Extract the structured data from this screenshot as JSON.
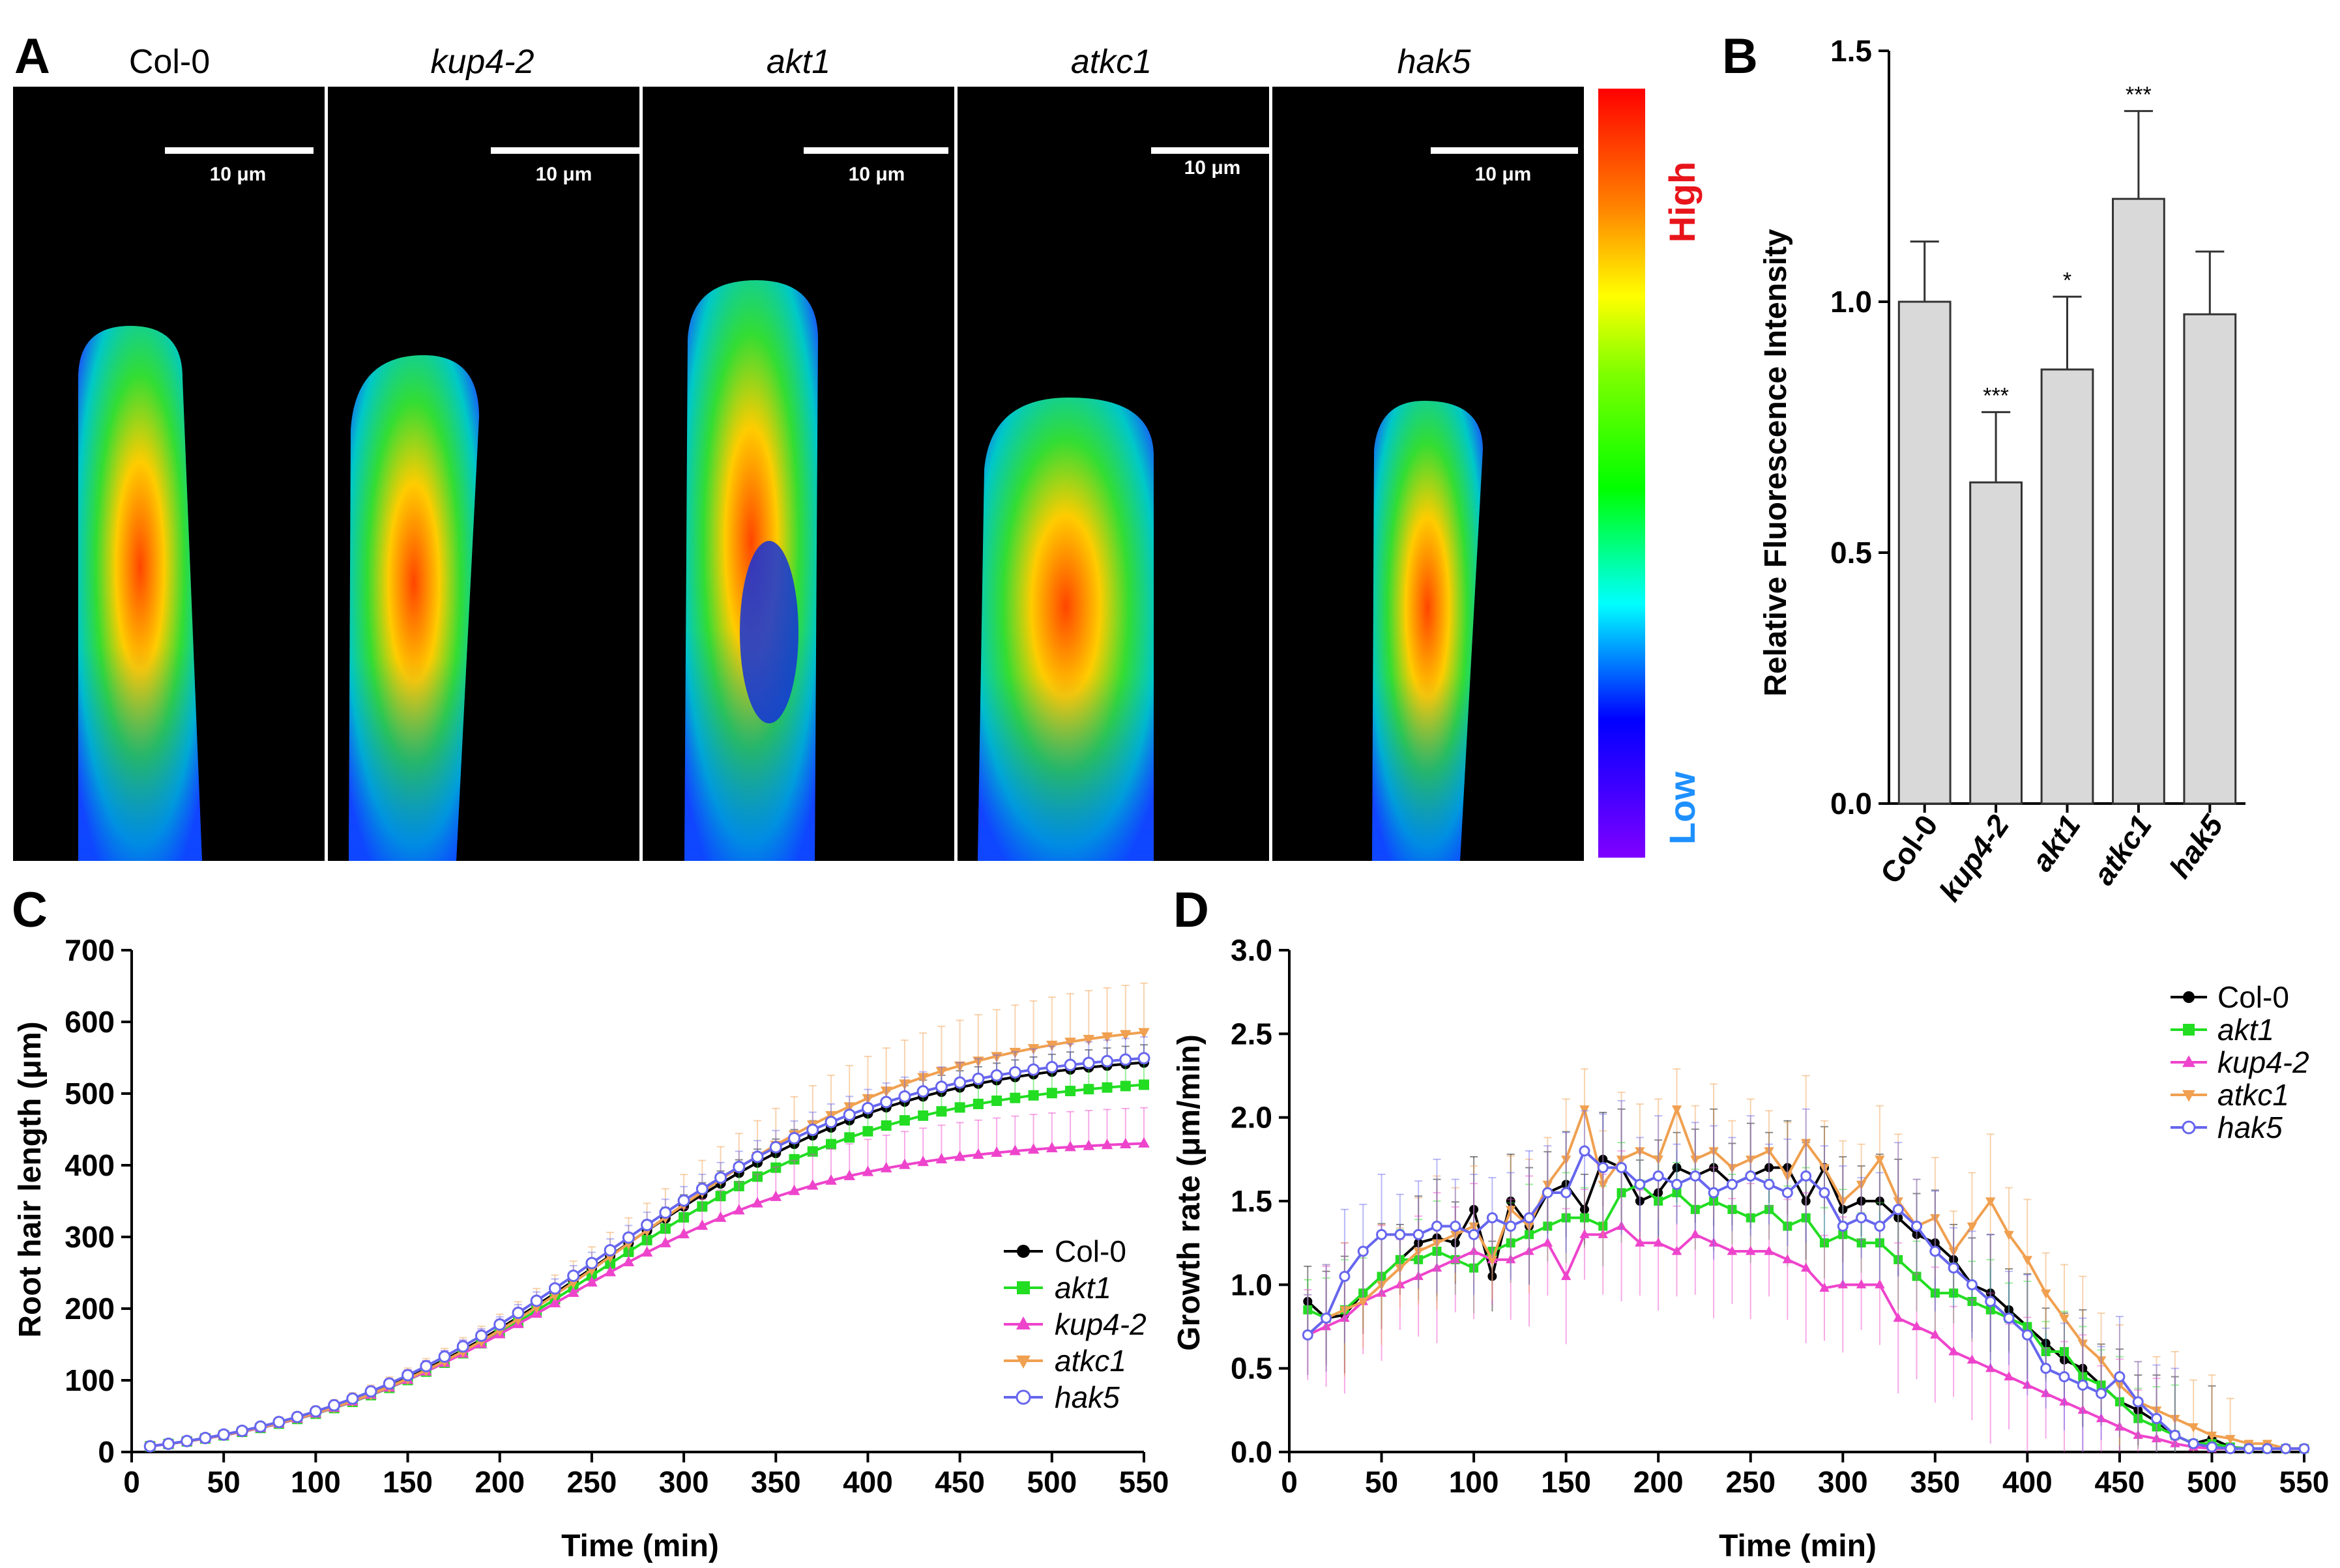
{
  "figure": {
    "panel_labels": [
      "A",
      "B",
      "C",
      "D"
    ]
  },
  "chart_data": [
    {
      "panel": "A",
      "type": "heatmap",
      "genotypes": [
        "Col-0",
        "kup4-2",
        "akt1",
        "atkc1",
        "hak5"
      ],
      "scale_bar_label": "10 μm",
      "colorbar": {
        "high_label": "High",
        "low_label": "Low"
      },
      "colors": {
        "high": "#e8141b",
        "low": "#1e90ff"
      }
    },
    {
      "panel": "B",
      "type": "bar",
      "categories": [
        "Col-0",
        "kup4-2",
        "akt1",
        "atkc1",
        "hak5"
      ],
      "values": [
        1.0,
        0.64,
        0.865,
        1.205,
        0.975
      ],
      "errors": [
        0.12,
        0.14,
        0.145,
        0.175,
        0.125
      ],
      "significance": [
        "",
        "***",
        "*",
        "***",
        ""
      ],
      "ylabel": "Relative Fluorescence Intensity",
      "ylim": [
        0,
        1.5
      ],
      "yticks": [
        "0.0",
        "0.5",
        "1.0",
        "1.5"
      ],
      "colors": {
        "bar": "#d9d9d9"
      }
    },
    {
      "panel": "C",
      "type": "line",
      "xlabel": "Time (min)",
      "ylabel": "Root hair length (μm)",
      "xlim": [
        0,
        550
      ],
      "ylim": [
        0,
        700
      ],
      "xticks": [
        "0",
        "50",
        "100",
        "150",
        "200",
        "250",
        "300",
        "350",
        "400",
        "450",
        "500",
        "550"
      ],
      "yticks": [
        "0",
        "100",
        "200",
        "300",
        "400",
        "500",
        "600",
        "700"
      ],
      "x_start": 10,
      "x_step": 10,
      "n": 55,
      "legend_position": "middle-right",
      "series": [
        {
          "name": "Col-0",
          "color": "#000000",
          "marker": "circle",
          "plateau": 578,
          "tmid": 258,
          "width": 82,
          "err": 25
        },
        {
          "name": "akt1",
          "color": "#22dd22",
          "marker": "square",
          "plateau": 545,
          "tmid": 255,
          "width": 82,
          "err": 40
        },
        {
          "name": "kup4-2",
          "color": "#ee44cc",
          "marker": "triangle-up",
          "plateau": 455,
          "tmid": 232,
          "width": 78,
          "err": 50
        },
        {
          "name": "atkc1",
          "color": "#f0a050",
          "marker": "triangle-down",
          "plateau": 630,
          "tmid": 272,
          "width": 86,
          "err": 70
        },
        {
          "name": "hak5",
          "color": "#6666ee",
          "marker": "open-circle",
          "plateau": 585,
          "tmid": 255,
          "width": 82,
          "err": 30
        }
      ]
    },
    {
      "panel": "D",
      "type": "line",
      "xlabel": "Time (min)",
      "ylabel": "Growth rate (μm/min)",
      "xlim": [
        0,
        550
      ],
      "ylim": [
        0,
        3.0
      ],
      "xticks": [
        "0",
        "50",
        "100",
        "150",
        "200",
        "250",
        "300",
        "350",
        "400",
        "450",
        "500",
        "550"
      ],
      "yticks": [
        "0.0",
        "0.5",
        "1.0",
        "1.5",
        "2.0",
        "2.5",
        "3.0"
      ],
      "x": [
        10,
        20,
        30,
        40,
        50,
        60,
        70,
        80,
        90,
        100,
        110,
        120,
        130,
        140,
        150,
        160,
        170,
        180,
        190,
        200,
        210,
        220,
        230,
        240,
        250,
        260,
        270,
        280,
        290,
        300,
        310,
        320,
        330,
        340,
        350,
        360,
        370,
        380,
        390,
        400,
        410,
        420,
        430,
        440,
        450,
        460,
        470,
        480,
        490,
        500,
        510,
        520,
        530,
        540,
        550
      ],
      "legend_position": "top-right",
      "series": [
        {
          "name": "Col-0",
          "color": "#000000",
          "marker": "circle",
          "err": 0.35,
          "values": [
            0.9,
            0.8,
            0.82,
            0.95,
            1.05,
            1.15,
            1.25,
            1.28,
            1.25,
            1.45,
            1.05,
            1.5,
            1.35,
            1.55,
            1.6,
            1.45,
            1.75,
            1.7,
            1.5,
            1.55,
            1.7,
            1.65,
            1.7,
            1.6,
            1.65,
            1.7,
            1.7,
            1.5,
            1.7,
            1.45,
            1.5,
            1.5,
            1.4,
            1.3,
            1.25,
            1.15,
            1.0,
            0.95,
            0.85,
            0.75,
            0.65,
            0.55,
            0.5,
            0.4,
            0.3,
            0.25,
            0.18,
            0.1,
            0.05,
            0.08,
            0.03,
            0.02,
            0.02,
            0.02,
            0.02
          ]
        },
        {
          "name": "akt1",
          "color": "#22dd22",
          "marker": "square",
          "err": 0.3,
          "values": [
            0.85,
            0.8,
            0.85,
            0.95,
            1.05,
            1.15,
            1.15,
            1.2,
            1.15,
            1.1,
            1.2,
            1.25,
            1.3,
            1.35,
            1.4,
            1.4,
            1.35,
            1.55,
            1.6,
            1.5,
            1.55,
            1.45,
            1.5,
            1.45,
            1.4,
            1.45,
            1.35,
            1.4,
            1.25,
            1.3,
            1.25,
            1.25,
            1.15,
            1.05,
            0.95,
            0.95,
            0.9,
            0.85,
            0.8,
            0.75,
            0.6,
            0.6,
            0.45,
            0.4,
            0.3,
            0.2,
            0.15,
            0.1,
            0.05,
            0.05,
            0.03,
            0.02,
            0.02,
            0.02,
            0.02
          ]
        },
        {
          "name": "kup4-2",
          "color": "#ee44cc",
          "marker": "triangle-up",
          "err": 0.45,
          "values": [
            0.7,
            0.75,
            0.8,
            0.9,
            0.95,
            1.0,
            1.05,
            1.1,
            1.15,
            1.2,
            1.15,
            1.15,
            1.2,
            1.25,
            1.05,
            1.3,
            1.3,
            1.35,
            1.25,
            1.25,
            1.2,
            1.3,
            1.25,
            1.2,
            1.2,
            1.2,
            1.15,
            1.1,
            0.98,
            1.0,
            1.0,
            1.0,
            0.8,
            0.75,
            0.7,
            0.6,
            0.55,
            0.5,
            0.45,
            0.4,
            0.35,
            0.3,
            0.25,
            0.2,
            0.15,
            0.1,
            0.08,
            0.05,
            0.03,
            0.02,
            0.02,
            0.02,
            0.02,
            0.02,
            0.02
          ]
        },
        {
          "name": "atkc1",
          "color": "#f0a050",
          "marker": "triangle-down",
          "err": 0.4,
          "values": [
            0.7,
            0.8,
            0.85,
            0.9,
            1.0,
            1.1,
            1.2,
            1.25,
            1.3,
            1.35,
            1.15,
            1.45,
            1.35,
            1.6,
            1.75,
            2.05,
            1.6,
            1.75,
            1.8,
            1.75,
            2.05,
            1.75,
            1.8,
            1.7,
            1.75,
            1.8,
            1.65,
            1.85,
            1.7,
            1.5,
            1.6,
            1.75,
            1.5,
            1.35,
            1.4,
            1.2,
            1.35,
            1.5,
            1.3,
            1.15,
            0.95,
            0.8,
            0.65,
            0.55,
            0.4,
            0.3,
            0.25,
            0.2,
            0.15,
            0.1,
            0.08,
            0.05,
            0.05,
            0.02,
            0.02
          ]
        },
        {
          "name": "hak5",
          "color": "#6666ee",
          "marker": "open-circle",
          "err": 0.4,
          "values": [
            0.7,
            0.8,
            1.05,
            1.2,
            1.3,
            1.3,
            1.3,
            1.35,
            1.35,
            1.3,
            1.4,
            1.35,
            1.4,
            1.55,
            1.55,
            1.8,
            1.7,
            1.7,
            1.6,
            1.65,
            1.6,
            1.65,
            1.55,
            1.6,
            1.65,
            1.6,
            1.55,
            1.65,
            1.55,
            1.35,
            1.4,
            1.35,
            1.45,
            1.35,
            1.2,
            1.1,
            1.0,
            0.9,
            0.8,
            0.7,
            0.5,
            0.45,
            0.4,
            0.35,
            0.45,
            0.3,
            0.2,
            0.1,
            0.05,
            0.03,
            0.02,
            0.02,
            0.02,
            0.02,
            0.02
          ]
        }
      ]
    }
  ]
}
